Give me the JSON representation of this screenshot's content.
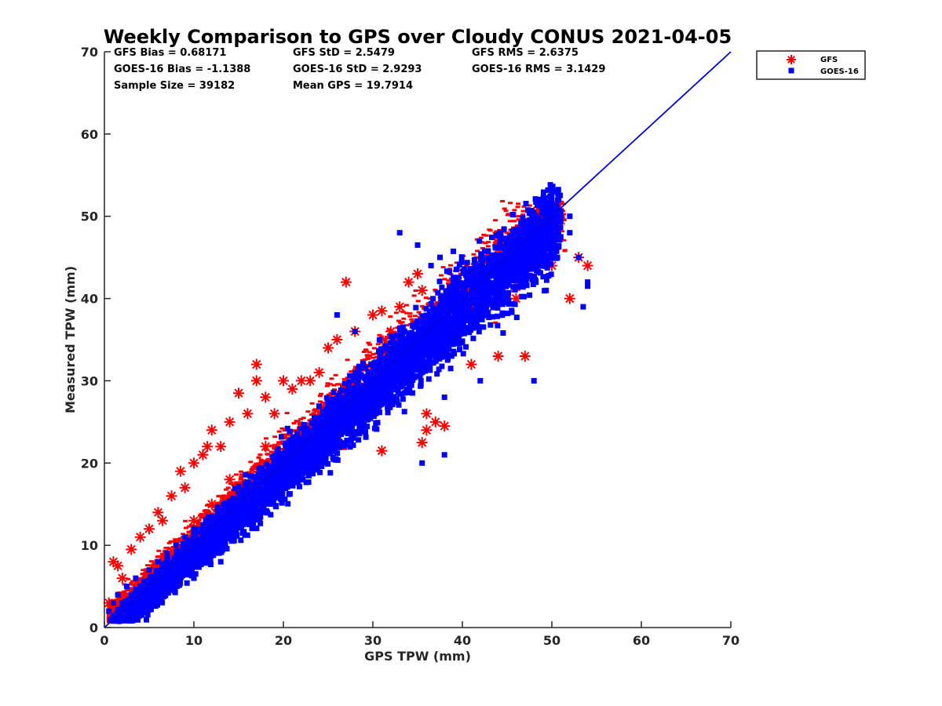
{
  "chart_data": {
    "type": "scatter",
    "title": "Weekly Comparison to GPS over Cloudy CONUS 2021-04-05",
    "xlabel": "GPS TPW (mm)",
    "ylabel": "Measured TPW (mm)",
    "xlim": [
      0,
      70
    ],
    "ylim": [
      0,
      70
    ],
    "xticks": [
      "0",
      "10",
      "20",
      "30",
      "40",
      "50",
      "60",
      "70"
    ],
    "yticks": [
      "0",
      "10",
      "20",
      "30",
      "40",
      "50",
      "60",
      "70"
    ],
    "grid": false,
    "legend_position": "outside-top-right",
    "reference_line": {
      "x": [
        0,
        70
      ],
      "y": [
        0,
        70
      ],
      "color": "#0000dd"
    },
    "stats": [
      [
        "GFS Bias = 0.68171",
        "GFS StD = 2.5479",
        "GFS RMS = 2.6375"
      ],
      [
        "GOES-16 Bias = -1.1388",
        "GOES-16 StD = 2.9293",
        "GOES-16 RMS = 3.1429"
      ],
      [
        "Sample Size = 39182",
        "Mean GPS = 19.7914",
        ""
      ]
    ],
    "series": [
      {
        "name": "GFS",
        "marker": "asterisk",
        "color": "#ff0000",
        "x": [
          0.5,
          1.0,
          1.5,
          2.0,
          3.0,
          4.0,
          5.0,
          6.0,
          6.5,
          7.5,
          8.5,
          9.0,
          10.0,
          11.0,
          11.5,
          12.0,
          13.0,
          14.0,
          15.0,
          16.0,
          17.0,
          17.0,
          18.0,
          19.0,
          20.0,
          21.0,
          22.0,
          23.0,
          24.0,
          25.0,
          26.0,
          27.0,
          28.0,
          30.0,
          31.0,
          32.0,
          33.0,
          34.0,
          35.0,
          35.5,
          36.0,
          37.0,
          38.0,
          40.0,
          42.0,
          44.0,
          45.0,
          46.0,
          47.0,
          48.0,
          49.0,
          50.0,
          51.0,
          52.0,
          53.0,
          54.0,
          35.5,
          38.0,
          31.0,
          36.0,
          41.0,
          44.0,
          47.0,
          12.0,
          14.0,
          18.0,
          22.0,
          26.0,
          30.0,
          34.0,
          40.0,
          46.0,
          50.0,
          10.0,
          15.0,
          20.0,
          25.0,
          30.0,
          35.0,
          45.0
        ],
        "y": [
          3.0,
          8.0,
          7.5,
          6.0,
          9.5,
          11.0,
          12.0,
          14.0,
          13.0,
          16.0,
          19.0,
          17.0,
          20.0,
          21.0,
          22.0,
          24.0,
          22.0,
          25.0,
          28.5,
          26.0,
          32.0,
          30.0,
          28.0,
          26.0,
          30.0,
          29.0,
          30.0,
          30.0,
          31.0,
          34.0,
          35.0,
          42.0,
          36.0,
          38.0,
          38.5,
          36.0,
          39.0,
          42.0,
          43.0,
          22.5,
          24.0,
          25.0,
          24.5,
          38.0,
          42.0,
          46.0,
          46.5,
          48.0,
          49.0,
          50.5,
          50.0,
          49.0,
          49.5,
          40.0,
          45.0,
          44.0,
          41.0,
          39.0,
          21.5,
          26.0,
          32.0,
          33.0,
          33.0,
          15.0,
          18.0,
          22.0,
          24.0,
          26.0,
          28.0,
          32.0,
          36.0,
          40.0,
          44.0,
          13.0,
          17.0,
          21.0,
          25.0,
          29.0,
          33.0,
          40.0
        ]
      },
      {
        "name": "GOES-16",
        "marker": "square",
        "color": "#0000ff",
        "x": [
          0.5,
          1.0,
          1.5,
          2.0,
          2.5,
          3.0,
          3.5,
          4.0,
          5.0,
          6.0,
          7.0,
          8.0,
          9.0,
          10.0,
          11.0,
          12.0,
          13.0,
          14.0,
          15.0,
          16.0,
          17.0,
          18.0,
          19.0,
          20.0,
          21.0,
          22.0,
          23.0,
          24.0,
          25.0,
          26.0,
          27.0,
          28.0,
          29.0,
          30.0,
          31.0,
          32.0,
          33.0,
          34.0,
          35.0,
          36.0,
          37.0,
          38.0,
          39.0,
          40.0,
          41.0,
          42.0,
          43.0,
          44.0,
          45.0,
          46.0,
          47.0,
          48.0,
          49.0,
          50.0,
          51.0,
          52.0,
          53.0,
          54.0,
          33.0,
          35.0,
          36.5,
          37.5,
          26.0,
          28.0,
          30.0,
          38.0,
          42.0,
          48.0,
          50.0,
          52.0,
          53.5,
          54.0,
          35.5,
          38.0,
          13.0,
          10.0,
          8.0,
          6.0,
          4.0,
          2.0
        ],
        "y": [
          2.0,
          3.0,
          4.0,
          3.0,
          5.0,
          4.0,
          6.0,
          5.0,
          7.0,
          8.0,
          9.0,
          10.0,
          11.0,
          12.0,
          12.5,
          13.5,
          14.0,
          15.0,
          16.0,
          17.0,
          18.0,
          19.0,
          20.0,
          21.0,
          21.5,
          22.5,
          23.0,
          24.0,
          25.0,
          26.0,
          27.0,
          28.0,
          28.5,
          29.0,
          30.0,
          31.0,
          32.0,
          32.5,
          33.0,
          34.0,
          35.0,
          36.0,
          36.0,
          37.0,
          38.0,
          39.0,
          40.0,
          41.0,
          42.0,
          43.0,
          44.0,
          45.0,
          46.0,
          47.0,
          47.5,
          48.0,
          45.0,
          41.5,
          48.0,
          46.5,
          44.0,
          45.0,
          38.0,
          36.0,
          30.0,
          21.0,
          30.0,
          30.0,
          52.0,
          50.0,
          39.0,
          42.0,
          20.0,
          28.0,
          8.0,
          6.0,
          5.0,
          4.0,
          2.0,
          1.5
        ]
      }
    ]
  }
}
